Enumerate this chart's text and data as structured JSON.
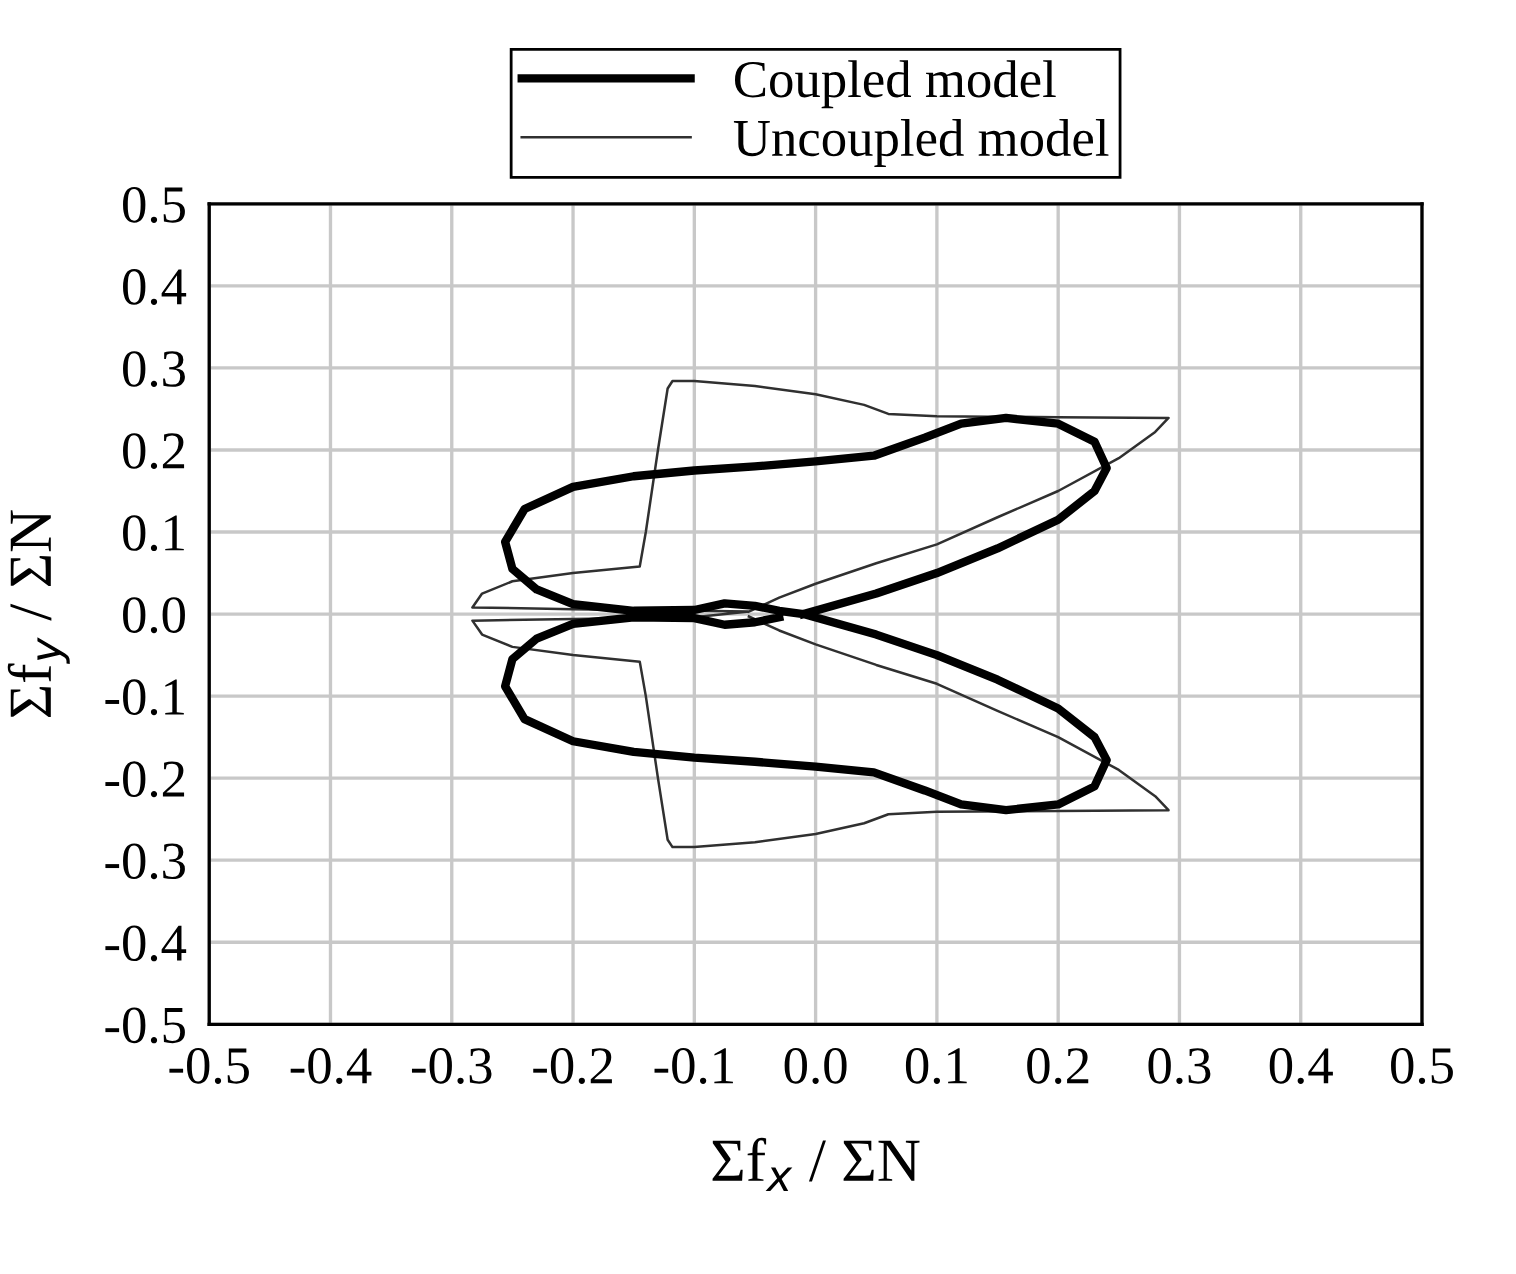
{
  "chart_data": {
    "type": "line",
    "xlabel": "Σf$_{x}$ / ΣN",
    "ylabel": "Σf$_{y}$ / ΣN",
    "xlim": [
      -0.5,
      0.5
    ],
    "ylim": [
      -0.5,
      0.5
    ],
    "xticks": [
      {
        "value": -0.5,
        "label": "-0.5"
      },
      {
        "value": -0.4,
        "label": "-0.4"
      },
      {
        "value": -0.3,
        "label": "-0.3"
      },
      {
        "value": -0.2,
        "label": "-0.2"
      },
      {
        "value": -0.1,
        "label": "-0.1"
      },
      {
        "value": 0,
        "label": "0.0"
      },
      {
        "value": 0.1,
        "label": "0.1"
      },
      {
        "value": 0.2,
        "label": "0.2"
      },
      {
        "value": 0.3,
        "label": "0.3"
      },
      {
        "value": 0.4,
        "label": "0.4"
      },
      {
        "value": 0.5,
        "label": "0.5"
      }
    ],
    "yticks": [
      {
        "value": -0.5,
        "label": "-0.5"
      },
      {
        "value": -0.4,
        "label": "-0.4"
      },
      {
        "value": -0.3,
        "label": "-0.3"
      },
      {
        "value": -0.2,
        "label": "-0.2"
      },
      {
        "value": -0.1,
        "label": "-0.1"
      },
      {
        "value": 0,
        "label": "0.0"
      },
      {
        "value": 0.1,
        "label": "0.1"
      },
      {
        "value": 0.2,
        "label": "0.2"
      },
      {
        "value": 0.3,
        "label": "0.3"
      },
      {
        "value": 0.4,
        "label": "0.4"
      },
      {
        "value": 0.5,
        "label": "0.5"
      }
    ],
    "grid": true,
    "legend": "top",
    "marker": "none",
    "line_style": "solid",
    "series": [
      {
        "name": "Coupled model",
        "color": "#000000",
        "x": [
          -0.01,
          0.05,
          0.1,
          0.15,
          0.2,
          0.23,
          0.24,
          0.23,
          0.2,
          0.157,
          0.12,
          0.09,
          0.048,
          0.0,
          -0.05,
          -0.1,
          -0.15,
          -0.2,
          -0.24,
          -0.256,
          -0.25,
          -0.23,
          -0.2,
          -0.15,
          -0.1,
          -0.075,
          -0.05,
          -0.03,
          -0.01,
          0.05,
          0.1,
          0.15,
          0.2,
          0.23,
          0.24,
          0.23,
          0.2,
          0.157,
          0.12,
          0.09,
          0.048,
          0.0,
          -0.05,
          -0.1,
          -0.15,
          -0.2,
          -0.24,
          -0.256,
          -0.25,
          -0.23,
          -0.2,
          -0.15,
          -0.1,
          -0.075,
          -0.05,
          -0.03
        ],
        "values": [
          0.0,
          0.025,
          0.05,
          0.08,
          0.115,
          0.15,
          0.178,
          0.21,
          0.232,
          0.239,
          0.232,
          0.215,
          0.193,
          0.186,
          0.18,
          0.175,
          0.168,
          0.155,
          0.128,
          0.088,
          0.055,
          0.03,
          0.012,
          0.004,
          0.005,
          0.013,
          0.01,
          0.004,
          0.0,
          -0.025,
          -0.05,
          -0.08,
          -0.115,
          -0.15,
          -0.178,
          -0.21,
          -0.232,
          -0.239,
          -0.232,
          -0.215,
          -0.193,
          -0.186,
          -0.18,
          -0.175,
          -0.168,
          -0.155,
          -0.128,
          -0.088,
          -0.055,
          -0.03,
          -0.012,
          -0.004,
          -0.005,
          -0.013,
          -0.01,
          -0.004
        ]
      },
      {
        "name": "Uncoupled model",
        "color": "#303030",
        "x": [
          -0.055,
          -0.03,
          0.0,
          0.05,
          0.1,
          0.15,
          0.2,
          0.25,
          0.28,
          0.291,
          0.2,
          0.1,
          0.06,
          0.04,
          0.0,
          -0.05,
          -0.1,
          -0.118,
          -0.122,
          -0.13,
          -0.14,
          -0.145,
          -0.2,
          -0.25,
          -0.275,
          -0.283,
          -0.2,
          -0.1,
          -0.055,
          -0.1,
          -0.2,
          -0.283,
          -0.275,
          -0.25,
          -0.2,
          -0.145,
          -0.14,
          -0.13,
          -0.122,
          -0.118,
          -0.1,
          -0.05,
          0.0,
          0.04,
          0.06,
          0.1,
          0.2,
          0.291,
          0.28,
          0.25,
          0.2,
          0.15,
          0.1,
          0.05,
          0.0,
          -0.03,
          -0.055
        ],
        "values": [
          0.003,
          0.02,
          0.037,
          0.062,
          0.085,
          0.118,
          0.15,
          0.19,
          0.222,
          0.239,
          0.24,
          0.241,
          0.244,
          0.255,
          0.268,
          0.278,
          0.284,
          0.284,
          0.275,
          0.2,
          0.1,
          0.058,
          0.05,
          0.04,
          0.025,
          0.008,
          0.006,
          0.004,
          0.003,
          -0.004,
          -0.006,
          -0.008,
          -0.025,
          -0.04,
          -0.05,
          -0.058,
          -0.1,
          -0.2,
          -0.275,
          -0.284,
          -0.284,
          -0.278,
          -0.268,
          -0.255,
          -0.244,
          -0.241,
          -0.24,
          -0.239,
          -0.222,
          -0.19,
          -0.15,
          -0.118,
          -0.085,
          -0.062,
          -0.037,
          -0.02,
          -0.003
        ]
      }
    ]
  }
}
